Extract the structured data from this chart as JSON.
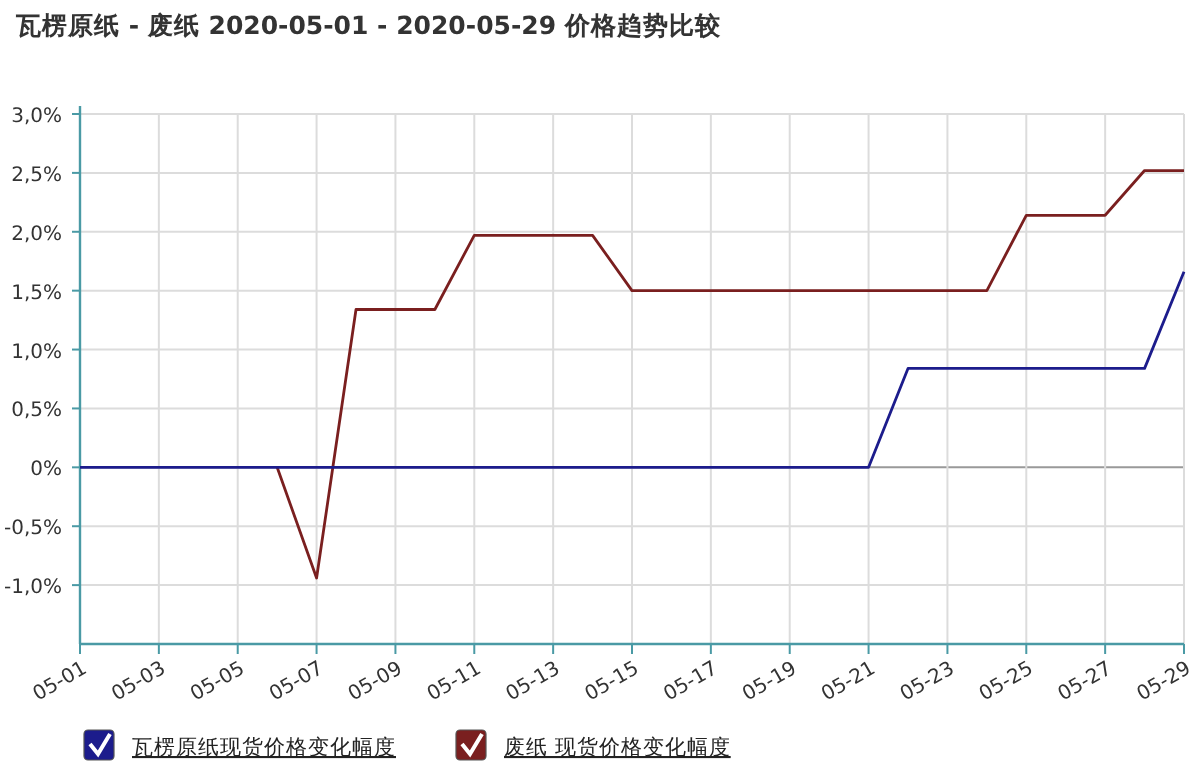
{
  "chart_data": {
    "type": "line",
    "title": "瓦楞原纸 - 废纸 2020-05-01 - 2020-05-29 价格趋势比较",
    "x": [
      "--05-01",
      "--05-02",
      "--05-03",
      "--05-04",
      "--05-05",
      "--05-06",
      "--05-07",
      "--05-08",
      "--05-09",
      "--05-10",
      "--05-11",
      "--05-12",
      "--05-13",
      "--05-14",
      "--05-15",
      "--05-16",
      "--05-17",
      "--05-18",
      "--05-19",
      "--05-20",
      "--05-21",
      "--05-22",
      "--05-23",
      "--05-24",
      "--05-25",
      "--05-26",
      "--05-27",
      "--05-28",
      "--05-29"
    ],
    "series": [
      {
        "name": "瓦楞原纸现货价格变化幅度",
        "color": "#1c1c8c",
        "values": [
          0,
          0,
          0,
          0,
          0,
          0,
          0,
          0,
          0,
          0,
          0,
          0,
          0,
          0,
          0,
          0,
          0,
          0,
          0,
          0,
          0,
          0.84,
          0.84,
          0.84,
          0.84,
          0.84,
          0.84,
          0.84,
          1.66
        ]
      },
      {
        "name": "废纸 现货价格变化幅度",
        "color": "#7a1f1f",
        "values": [
          null,
          null,
          null,
          null,
          null,
          0,
          -0.94,
          1.34,
          1.34,
          1.34,
          1.97,
          1.97,
          1.97,
          1.97,
          1.5,
          1.5,
          1.5,
          1.5,
          1.5,
          1.5,
          1.5,
          1.5,
          1.5,
          1.5,
          2.14,
          2.14,
          2.14,
          2.52,
          2.52
        ]
      }
    ],
    "xlim": [
      "--05-01",
      "--05-29"
    ],
    "xticks": [
      {
        "value": "--05-01",
        "label": "05-01"
      },
      {
        "value": "--05-03",
        "label": "05-03"
      },
      {
        "value": "--05-05",
        "label": "05-05"
      },
      {
        "value": "--05-07",
        "label": "05-07"
      },
      {
        "value": "--05-09",
        "label": "05-09"
      },
      {
        "value": "--05-11",
        "label": "05-11"
      },
      {
        "value": "--05-13",
        "label": "05-13"
      },
      {
        "value": "--05-15",
        "label": "05-15"
      },
      {
        "value": "--05-17",
        "label": "05-17"
      },
      {
        "value": "--05-19",
        "label": "05-19"
      },
      {
        "value": "--05-21",
        "label": "05-21"
      },
      {
        "value": "--05-23",
        "label": "05-23"
      },
      {
        "value": "--05-25",
        "label": "05-25"
      },
      {
        "value": "--05-27",
        "label": "05-27"
      },
      {
        "value": "--05-29",
        "label": "05-29"
      }
    ],
    "ylim": [
      -1.5,
      3.0
    ],
    "yticks": [
      {
        "value": -1.0,
        "label": "-1,0%"
      },
      {
        "value": -0.5,
        "label": "-0,5%"
      },
      {
        "value": 0,
        "label": "0%"
      },
      {
        "value": 0.5,
        "label": "0,5%"
      },
      {
        "value": 1.0,
        "label": "1,0%"
      },
      {
        "value": 1.5,
        "label": "1,5%"
      },
      {
        "value": 2.0,
        "label": "2,0%"
      },
      {
        "value": 2.5,
        "label": "2,5%"
      },
      {
        "value": 3.0,
        "label": "3,0%"
      }
    ],
    "grid": true,
    "legend": "bottom left",
    "marker": "none",
    "line_style": "solid"
  }
}
